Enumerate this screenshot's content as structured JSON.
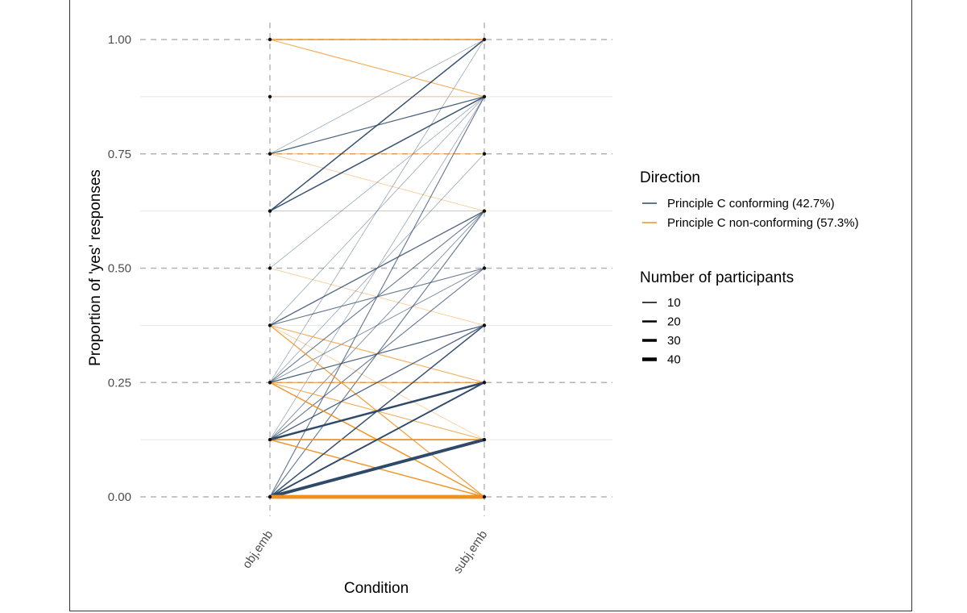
{
  "chart_data": {
    "type": "line",
    "xlabel": "Condition",
    "ylabel": "Proportion of 'yes' responses",
    "categories": [
      "obj,emb",
      "subj,emb"
    ],
    "ylim": [
      0,
      1
    ],
    "y_ticks": [
      "0.00",
      "0.25",
      "0.50",
      "0.75",
      "1.00"
    ],
    "y_tick_values": [
      0,
      0.25,
      0.5,
      0.75,
      1
    ],
    "points": [
      0,
      0.125,
      0.25,
      0.375,
      0.5,
      0.625,
      0.75,
      0.875,
      1
    ],
    "legend_direction": {
      "title": "Direction",
      "entries": [
        {
          "label": "Principle C conforming (42.7%)",
          "color": "#2f4a68"
        },
        {
          "label": "Principle C non-conforming (57.3%)",
          "color": "#f0901e"
        }
      ]
    },
    "legend_size": {
      "title": "Number of participants",
      "entries": [
        {
          "label": "10",
          "n": 10
        },
        {
          "label": "20",
          "n": 20
        },
        {
          "label": "30",
          "n": 30
        },
        {
          "label": "40",
          "n": 40
        }
      ]
    },
    "series": [
      {
        "direction": "non-conforming",
        "from": 1.0,
        "to": 1.0,
        "n": 10
      },
      {
        "direction": "non-conforming",
        "from": 1.0,
        "to": 0.875,
        "n": 6
      },
      {
        "direction": "non-conforming",
        "from": 0.875,
        "to": 0.875,
        "n": 3
      },
      {
        "direction": "non-conforming",
        "from": 0.75,
        "to": 0.75,
        "n": 4
      },
      {
        "direction": "non-conforming",
        "from": 0.75,
        "to": 0.625,
        "n": 2
      },
      {
        "direction": "non-conforming",
        "from": 0.625,
        "to": 0.625,
        "n": 2
      },
      {
        "direction": "non-conforming",
        "from": 0.5,
        "to": 0.375,
        "n": 2
      },
      {
        "direction": "non-conforming",
        "from": 0.375,
        "to": 0.25,
        "n": 6
      },
      {
        "direction": "non-conforming",
        "from": 0.375,
        "to": 0.125,
        "n": 2
      },
      {
        "direction": "non-conforming",
        "from": 0.375,
        "to": 0.0,
        "n": 8
      },
      {
        "direction": "non-conforming",
        "from": 0.25,
        "to": 0.25,
        "n": 8
      },
      {
        "direction": "non-conforming",
        "from": 0.25,
        "to": 0.125,
        "n": 6
      },
      {
        "direction": "non-conforming",
        "from": 0.25,
        "to": 0.0,
        "n": 10
      },
      {
        "direction": "non-conforming",
        "from": 0.125,
        "to": 0.125,
        "n": 12
      },
      {
        "direction": "non-conforming",
        "from": 0.125,
        "to": 0.0,
        "n": 10
      },
      {
        "direction": "non-conforming",
        "from": 0.0,
        "to": 0.0,
        "n": 42
      },
      {
        "direction": "conforming",
        "from": 0.75,
        "to": 1.0,
        "n": 2
      },
      {
        "direction": "conforming",
        "from": 0.75,
        "to": 0.875,
        "n": 8
      },
      {
        "direction": "conforming",
        "from": 0.625,
        "to": 1.0,
        "n": 10
      },
      {
        "direction": "conforming",
        "from": 0.625,
        "to": 0.875,
        "n": 10
      },
      {
        "direction": "conforming",
        "from": 0.5,
        "to": 0.875,
        "n": 2
      },
      {
        "direction": "conforming",
        "from": 0.375,
        "to": 0.875,
        "n": 2
      },
      {
        "direction": "conforming",
        "from": 0.375,
        "to": 0.625,
        "n": 8
      },
      {
        "direction": "conforming",
        "from": 0.375,
        "to": 0.5,
        "n": 6
      },
      {
        "direction": "conforming",
        "from": 0.25,
        "to": 1.0,
        "n": 2
      },
      {
        "direction": "conforming",
        "from": 0.25,
        "to": 0.75,
        "n": 2
      },
      {
        "direction": "conforming",
        "from": 0.25,
        "to": 0.625,
        "n": 6
      },
      {
        "direction": "conforming",
        "from": 0.25,
        "to": 0.5,
        "n": 4
      },
      {
        "direction": "conforming",
        "from": 0.25,
        "to": 0.375,
        "n": 8
      },
      {
        "direction": "conforming",
        "from": 0.125,
        "to": 0.875,
        "n": 2
      },
      {
        "direction": "conforming",
        "from": 0.125,
        "to": 0.625,
        "n": 4
      },
      {
        "direction": "conforming",
        "from": 0.125,
        "to": 0.5,
        "n": 6
      },
      {
        "direction": "conforming",
        "from": 0.125,
        "to": 0.375,
        "n": 8
      },
      {
        "direction": "conforming",
        "from": 0.125,
        "to": 0.25,
        "n": 20
      },
      {
        "direction": "conforming",
        "from": 0.0,
        "to": 0.875,
        "n": 6
      },
      {
        "direction": "conforming",
        "from": 0.0,
        "to": 0.625,
        "n": 6
      },
      {
        "direction": "conforming",
        "from": 0.0,
        "to": 0.375,
        "n": 10
      },
      {
        "direction": "conforming",
        "from": 0.0,
        "to": 0.25,
        "n": 14
      },
      {
        "direction": "conforming",
        "from": 0.0,
        "to": 0.125,
        "n": 34
      }
    ]
  }
}
